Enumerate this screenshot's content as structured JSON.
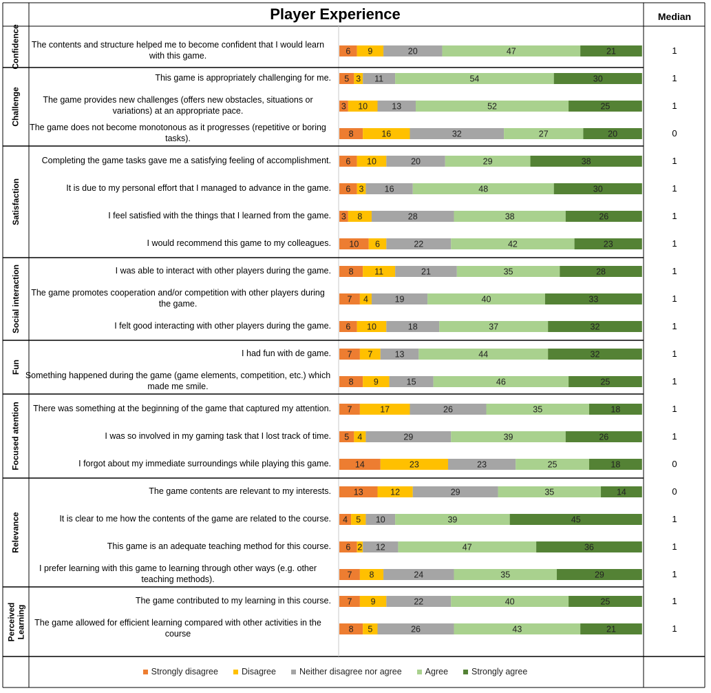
{
  "title": "Player Experience",
  "median_header": "Median",
  "chart_data": {
    "type": "bar",
    "stacked": true,
    "orientation": "horizontal",
    "title": "Player Experience",
    "series_names": [
      "Strongly disagree",
      "Disagree",
      "Neither disagree nor agree",
      "Agree",
      "Strongly agree"
    ],
    "colors": [
      "#ed7d31",
      "#ffc000",
      "#a5a5a5",
      "#a9d18e",
      "#548235"
    ],
    "legend_position": "bottom",
    "sections": [
      {
        "label": "Confidence",
        "items": [
          {
            "question": "The contents and structure helped me to become confident that I would learn with this game.",
            "values": [
              6,
              9,
              20,
              47,
              21
            ],
            "median": "1"
          }
        ]
      },
      {
        "label": "Challenge",
        "items": [
          {
            "question": "This game is appropriately challenging for me.",
            "values": [
              5,
              3,
              11,
              54,
              30
            ],
            "median": "1"
          },
          {
            "question": "The game provides new challenges (offers new obstacles, situations or variations) at an appropriate pace.",
            "values": [
              3,
              10,
              13,
              52,
              25
            ],
            "median": "1"
          },
          {
            "question": "The game does not become monotonous as it progresses (repetitive or boring tasks).",
            "values": [
              8,
              16,
              32,
              27,
              20
            ],
            "median": "0"
          }
        ]
      },
      {
        "label": "Satisfaction",
        "items": [
          {
            "question": "Completing the game tasks gave me a satisfying feeling of accomplishment.",
            "values": [
              6,
              10,
              20,
              29,
              38
            ],
            "median": "1"
          },
          {
            "question": "It is due to my personal effort that I managed to advance in the game.",
            "values": [
              6,
              3,
              16,
              48,
              30
            ],
            "median": "1"
          },
          {
            "question": "I feel satisfied with the things that I learned from the game.",
            "values": [
              3,
              8,
              28,
              38,
              26
            ],
            "median": "1"
          },
          {
            "question": "I would recommend this game to my colleagues.",
            "values": [
              10,
              6,
              22,
              42,
              23
            ],
            "median": "1"
          }
        ]
      },
      {
        "label": "Social interaction",
        "items": [
          {
            "question": "I was able to interact with other players during the game.",
            "values": [
              8,
              11,
              21,
              35,
              28
            ],
            "median": "1"
          },
          {
            "question": "The game promotes cooperation and/or competition with other players during the game.",
            "values": [
              7,
              4,
              19,
              40,
              33
            ],
            "median": "1"
          },
          {
            "question": "I felt good interacting with other players during the game.",
            "values": [
              6,
              10,
              18,
              37,
              32
            ],
            "median": "1"
          }
        ]
      },
      {
        "label": "Fun",
        "items": [
          {
            "question": "I had fun with de game.",
            "values": [
              7,
              7,
              13,
              44,
              32
            ],
            "median": "1"
          },
          {
            "question": "Something happened during the game (game elements, competition, etc.) which made me smile.",
            "values": [
              8,
              9,
              15,
              46,
              25
            ],
            "median": "1"
          }
        ]
      },
      {
        "label": "Focused atention",
        "items": [
          {
            "question": "There was something at the beginning of the game that captured my attention.",
            "values": [
              7,
              17,
              26,
              35,
              18
            ],
            "median": "1"
          },
          {
            "question": "I was so involved in my gaming task that I lost track of time.",
            "values": [
              5,
              4,
              29,
              39,
              26
            ],
            "median": "1"
          },
          {
            "question": "I forgot about my immediate surroundings while playing this game.",
            "values": [
              14,
              23,
              23,
              25,
              18
            ],
            "median": "0"
          }
        ]
      },
      {
        "label": "Relevance",
        "items": [
          {
            "question": "The game contents are relevant to my interests.",
            "values": [
              13,
              12,
              29,
              35,
              14
            ],
            "median": "0"
          },
          {
            "question": "It is clear to me how the contents of the game are related to the course.",
            "values": [
              4,
              5,
              10,
              39,
              45
            ],
            "median": "1"
          },
          {
            "question": "This game is an adequate teaching method for this course.",
            "values": [
              6,
              2,
              12,
              47,
              36
            ],
            "median": "1"
          },
          {
            "question": "I prefer learning with this game to learning through other ways (e.g. other teaching methods).",
            "values": [
              7,
              8,
              24,
              35,
              29
            ],
            "median": "1"
          }
        ]
      },
      {
        "label": "Perceived Learning",
        "items": [
          {
            "question": "The game contributed to my learning in this course.",
            "values": [
              7,
              9,
              22,
              40,
              25
            ],
            "median": "1"
          },
          {
            "question": "The game allowed for efficient learning compared with other activities in the course",
            "values": [
              8,
              5,
              26,
              43,
              21
            ],
            "median": "1"
          }
        ]
      }
    ]
  }
}
